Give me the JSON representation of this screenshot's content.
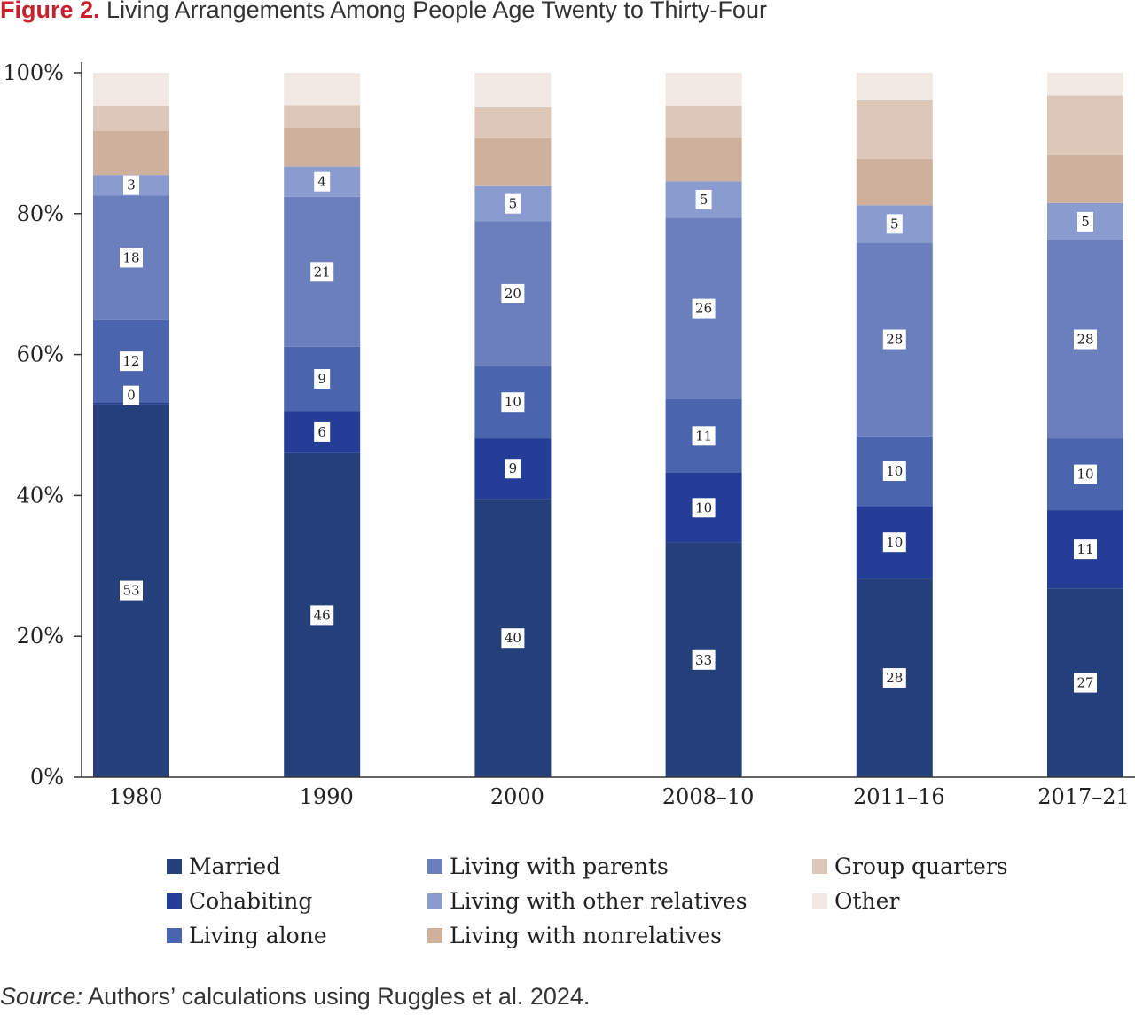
{
  "figure": {
    "title_lead": "Figure 2.",
    "title_text": "Living Arrangements Among People Age Twenty to Thirty-Four",
    "source_label": "Source:",
    "source_text": "Authors’ calculations using Ruggles et al. 2024."
  },
  "chart_data": {
    "type": "bar",
    "stacked": true,
    "normalized": true,
    "title": "Living Arrangements Among People Age Twenty to Thirty-Four",
    "categories": [
      "1980",
      "1990",
      "2000",
      "2008–10",
      "2011–16",
      "2017–21"
    ],
    "ylim": [
      0,
      100
    ],
    "ytick_labels": [
      "0%",
      "20%",
      "40%",
      "60%",
      "80%",
      "100%"
    ],
    "ytick_values": [
      0,
      20,
      40,
      60,
      80,
      100
    ],
    "grid": false,
    "legend_position": "bottom",
    "series": [
      {
        "name": "Married",
        "color": "#253f7b",
        "values": [
          53,
          46,
          39.5,
          33.3,
          28.2,
          26.8
        ],
        "labels": [
          "53",
          "46",
          "40",
          "33",
          "28",
          "27"
        ]
      },
      {
        "name": "Cohabiting",
        "color": "#243d96",
        "values": [
          0.2,
          6,
          8.6,
          9.9,
          10.3,
          11.1
        ],
        "labels": [
          "0",
          "6",
          "9",
          "10",
          "10",
          "11"
        ]
      },
      {
        "name": "Living alone",
        "color": "#4a64ad",
        "values": [
          11.7,
          9.1,
          10.3,
          10.5,
          9.9,
          10.2
        ],
        "labels": [
          "12",
          "9",
          "10",
          "11",
          "10",
          "10"
        ]
      },
      {
        "name": "Living with parents",
        "color": "#6a7fbc",
        "values": [
          17.7,
          21.3,
          20.5,
          25.7,
          27.5,
          28.1
        ],
        "labels": [
          "18",
          "21",
          "20",
          "26",
          "28",
          "28"
        ]
      },
      {
        "name": "Living with other relatives",
        "color": "#8a9bd0",
        "values": [
          2.9,
          4.3,
          5,
          5.2,
          5.3,
          5.3
        ],
        "labels": [
          "3",
          "4",
          "5",
          "5",
          "5",
          "5"
        ]
      },
      {
        "name": "Living with nonrelatives",
        "color": "#cfb09d",
        "values": [
          6.2,
          5.5,
          6.8,
          6.2,
          6.6,
          6.8
        ],
        "labels": [
          "",
          "",
          "",
          "",
          "",
          ""
        ]
      },
      {
        "name": "Group quarters",
        "color": "#dcc7b9",
        "values": [
          3.6,
          3.2,
          4.4,
          4.5,
          8.3,
          8.5
        ],
        "labels": [
          "",
          "",
          "",
          "",
          "",
          ""
        ]
      },
      {
        "name": "Other",
        "color": "#f2e9e4",
        "values": [
          4.7,
          4.6,
          4.9,
          4.7,
          3.9,
          3.2
        ],
        "labels": [
          "",
          "",
          "",
          "",
          "",
          ""
        ]
      }
    ]
  }
}
